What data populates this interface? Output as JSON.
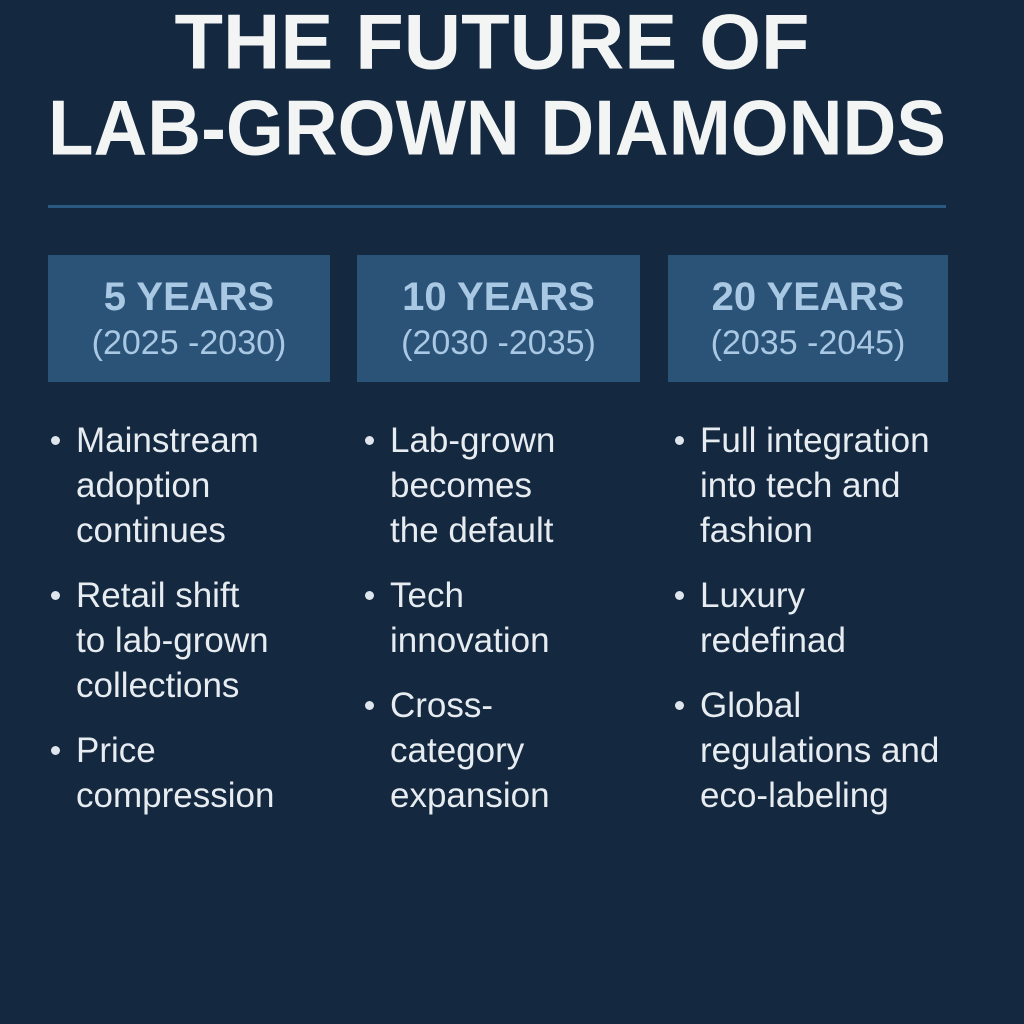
{
  "header": {
    "title_lines": [
      "THE FUTURE OF",
      "LAB-GROWN DIAMONDS"
    ]
  },
  "columns": [
    {
      "heading": "5 YEARS",
      "period": "(2025 -2030)",
      "bullets": [
        [
          "Mainstream",
          "adoption",
          "continues"
        ],
        [
          "Retail shift",
          "to lab-grown",
          "collections"
        ],
        [
          "Price",
          "compression"
        ]
      ]
    },
    {
      "heading": "10 YEARS",
      "period": "(2030 -2035)",
      "bullets": [
        [
          "Lab-grown",
          "becomes",
          "the default"
        ],
        [
          "Tech",
          "innovation"
        ],
        [
          "Cross-",
          "category",
          "expansion"
        ]
      ]
    },
    {
      "heading": "20 YEARS",
      "period": "(2035 -2045)",
      "bullets": [
        [
          "Full integration",
          "into tech and",
          "fashion"
        ],
        [
          "Luxury",
          "redefinad"
        ],
        [
          "Global",
          "regulations and",
          "eco-labeling"
        ]
      ]
    }
  ]
}
